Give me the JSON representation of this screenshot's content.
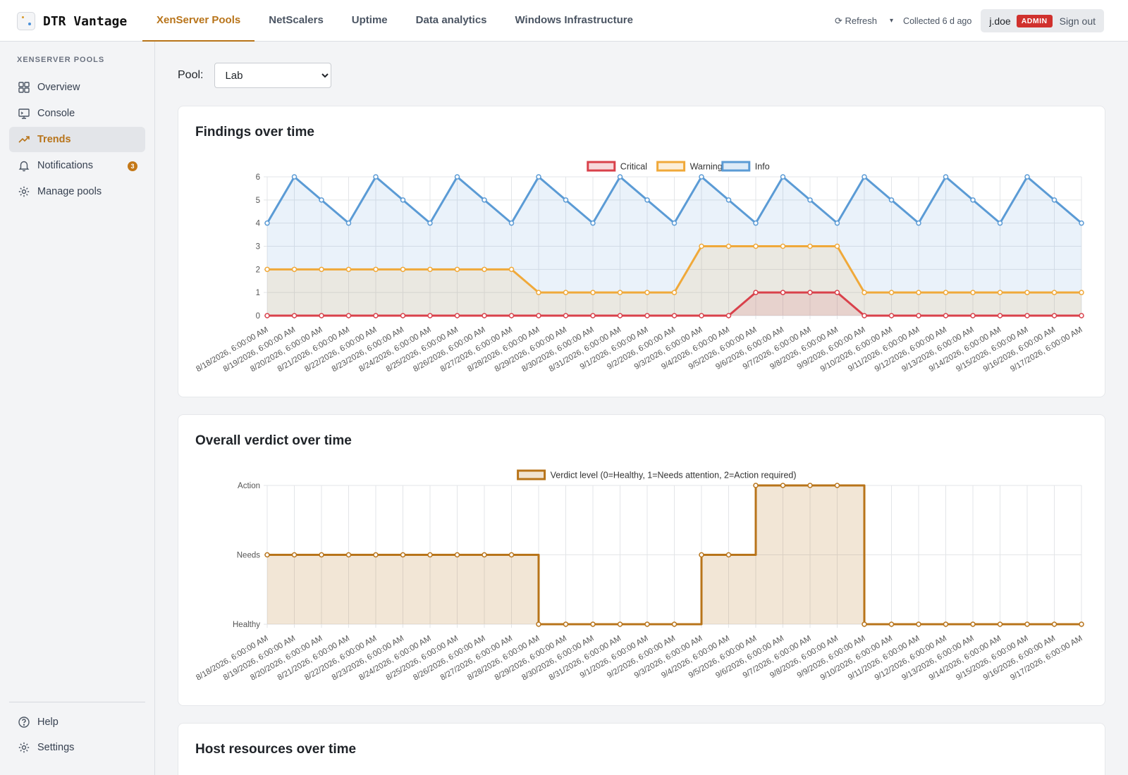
{
  "app": {
    "name": "DTR Vantage"
  },
  "nav": {
    "tabs": [
      {
        "label": "XenServer Pools",
        "active": true
      },
      {
        "label": "NetScalers"
      },
      {
        "label": "Uptime"
      },
      {
        "label": "Data analytics"
      },
      {
        "label": "Windows Infrastructure"
      }
    ]
  },
  "toolbar": {
    "refresh_label": "⟳ Refresh",
    "caret": "▾",
    "collected": "Collected 6 d ago",
    "user": "j.doe",
    "role_badge": "ADMIN",
    "signout_label": "Sign out"
  },
  "sidebar": {
    "heading": "XENSERVER POOLS",
    "items": [
      {
        "label": "Overview",
        "icon": "grid-icon"
      },
      {
        "label": "Console",
        "icon": "monitor-icon"
      },
      {
        "label": "Trends",
        "icon": "trend-icon",
        "active": true
      },
      {
        "label": "Notifications",
        "icon": "bell-icon",
        "badge": "3"
      },
      {
        "label": "Manage pools",
        "icon": "gear-icon"
      }
    ],
    "footer": [
      {
        "label": "Help",
        "icon": "help-icon"
      },
      {
        "label": "Settings",
        "icon": "gear-icon"
      }
    ]
  },
  "pool": {
    "label": "Pool:",
    "selected": "Lab"
  },
  "cards": {
    "findings_title": "Findings over time",
    "verdict_title": "Overall verdict over time",
    "host_title": "Host resources over time"
  },
  "colors": {
    "accent": "#b8741a",
    "critical": "#d9414b",
    "warning": "#f0a93a",
    "info": "#5b9bd5",
    "verdict": "#b8741a"
  },
  "chart_data": [
    {
      "type": "area",
      "title": "Findings over time",
      "x": [
        "8/18/2026, 6:00:00 AM",
        "8/19/2026, 6:00:00 AM",
        "8/20/2026, 6:00:00 AM",
        "8/21/2026, 6:00:00 AM",
        "8/22/2026, 6:00:00 AM",
        "8/23/2026, 6:00:00 AM",
        "8/24/2026, 6:00:00 AM",
        "8/25/2026, 6:00:00 AM",
        "8/26/2026, 6:00:00 AM",
        "8/27/2026, 6:00:00 AM",
        "8/28/2026, 6:00:00 AM",
        "8/29/2026, 6:00:00 AM",
        "8/30/2026, 6:00:00 AM",
        "8/31/2026, 6:00:00 AM",
        "9/1/2026, 6:00:00 AM",
        "9/2/2026, 6:00:00 AM",
        "9/3/2026, 6:00:00 AM",
        "9/4/2026, 6:00:00 AM",
        "9/5/2026, 6:00:00 AM",
        "9/6/2026, 6:00:00 AM",
        "9/7/2026, 6:00:00 AM",
        "9/8/2026, 6:00:00 AM",
        "9/9/2026, 6:00:00 AM",
        "9/10/2026, 6:00:00 AM",
        "9/11/2026, 6:00:00 AM",
        "9/12/2026, 6:00:00 AM",
        "9/13/2026, 6:00:00 AM",
        "9/14/2026, 6:00:00 AM",
        "9/15/2026, 6:00:00 AM",
        "9/16/2026, 6:00:00 AM",
        "9/17/2026, 6:00:00 AM"
      ],
      "series": [
        {
          "name": "Critical",
          "color": "#d9414b",
          "values": [
            0,
            0,
            0,
            0,
            0,
            0,
            0,
            0,
            0,
            0,
            0,
            0,
            0,
            0,
            0,
            0,
            0,
            0,
            1,
            1,
            1,
            1,
            0,
            0,
            0,
            0,
            0,
            0,
            0,
            0,
            0
          ]
        },
        {
          "name": "Warning",
          "color": "#f0a93a",
          "values": [
            2,
            2,
            2,
            2,
            2,
            2,
            2,
            2,
            2,
            2,
            1,
            1,
            1,
            1,
            1,
            1,
            3,
            3,
            3,
            3,
            3,
            3,
            1,
            1,
            1,
            1,
            1,
            1,
            1,
            1,
            1
          ]
        },
        {
          "name": "Info",
          "color": "#5b9bd5",
          "values": [
            4,
            6,
            5,
            4,
            6,
            5,
            4,
            6,
            5,
            4,
            6,
            5,
            4,
            6,
            5,
            4,
            6,
            5,
            4,
            6,
            5,
            4,
            6,
            5,
            4,
            6,
            5,
            4,
            6,
            5,
            4
          ]
        }
      ],
      "ylim": [
        0,
        6
      ],
      "yticks": [
        "0",
        "1",
        "2",
        "3",
        "4",
        "5",
        "6"
      ],
      "grid": true,
      "legend": "top-center"
    },
    {
      "type": "line",
      "title": "Overall verdict over time",
      "x": [
        "8/18/2026, 6:00:00 AM",
        "8/19/2026, 6:00:00 AM",
        "8/20/2026, 6:00:00 AM",
        "8/21/2026, 6:00:00 AM",
        "8/22/2026, 6:00:00 AM",
        "8/23/2026, 6:00:00 AM",
        "8/24/2026, 6:00:00 AM",
        "8/25/2026, 6:00:00 AM",
        "8/26/2026, 6:00:00 AM",
        "8/27/2026, 6:00:00 AM",
        "8/28/2026, 6:00:00 AM",
        "8/29/2026, 6:00:00 AM",
        "8/30/2026, 6:00:00 AM",
        "8/31/2026, 6:00:00 AM",
        "9/1/2026, 6:00:00 AM",
        "9/2/2026, 6:00:00 AM",
        "9/3/2026, 6:00:00 AM",
        "9/4/2026, 6:00:00 AM",
        "9/5/2026, 6:00:00 AM",
        "9/6/2026, 6:00:00 AM",
        "9/7/2026, 6:00:00 AM",
        "9/8/2026, 6:00:00 AM",
        "9/9/2026, 6:00:00 AM",
        "9/10/2026, 6:00:00 AM",
        "9/11/2026, 6:00:00 AM",
        "9/12/2026, 6:00:00 AM",
        "9/13/2026, 6:00:00 AM",
        "9/14/2026, 6:00:00 AM",
        "9/15/2026, 6:00:00 AM",
        "9/16/2026, 6:00:00 AM",
        "9/17/2026, 6:00:00 AM"
      ],
      "series": [
        {
          "name": "Verdict level (0=Healthy, 1=Needs attention, 2=Action required)",
          "color": "#b8741a",
          "values": [
            1,
            1,
            1,
            1,
            1,
            1,
            1,
            1,
            1,
            1,
            0,
            0,
            0,
            0,
            0,
            0,
            1,
            1,
            2,
            2,
            2,
            2,
            0,
            0,
            0,
            0,
            0,
            0,
            0,
            0,
            0
          ]
        }
      ],
      "step": true,
      "ylim": [
        0,
        2
      ],
      "yticks": [
        "Healthy",
        "Needs",
        "Action"
      ],
      "grid": true,
      "legend": "top-center"
    }
  ]
}
